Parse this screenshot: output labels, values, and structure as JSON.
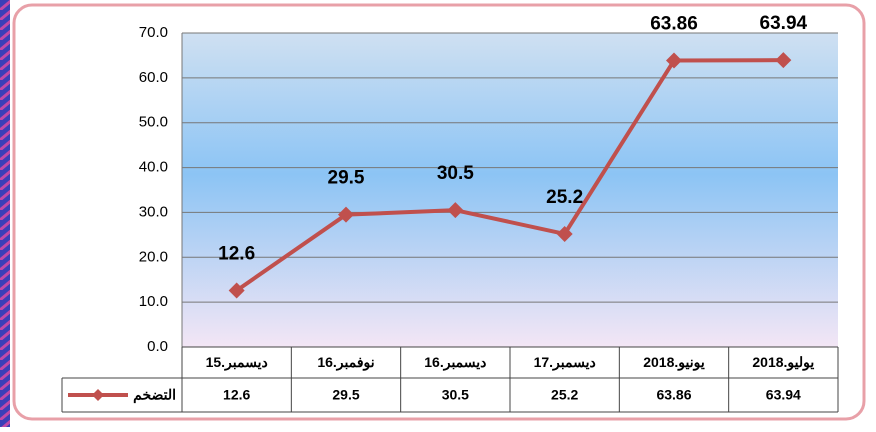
{
  "chart_data": {
    "type": "line",
    "categories": [
      "ديسمبر.15",
      "نوفمبر.16",
      "ديسمبر.16",
      "ديسمبر.17",
      "يونيو.2018",
      "يوليو.2018"
    ],
    "series": [
      {
        "name": "التضخم",
        "color": "#c0504d",
        "values": [
          12.6,
          29.5,
          30.5,
          25.2,
          63.86,
          63.94
        ]
      }
    ],
    "ylim": [
      0,
      70
    ],
    "yticks": [
      {
        "value": 0,
        "label": "0.0"
      },
      {
        "value": 10,
        "label": "10.0"
      },
      {
        "value": 20,
        "label": "20.0"
      },
      {
        "value": 30,
        "label": "30.0"
      },
      {
        "value": 40,
        "label": "40.0"
      },
      {
        "value": 50,
        "label": "50.0"
      },
      {
        "value": 60,
        "label": "60.0"
      },
      {
        "value": 70,
        "label": "70.0"
      }
    ],
    "grid": true
  }
}
